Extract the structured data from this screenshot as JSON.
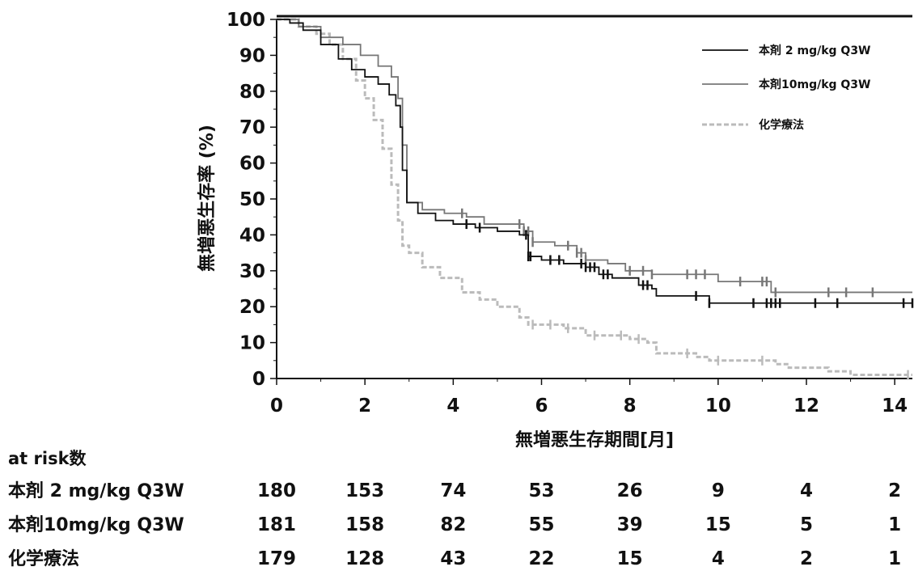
{
  "chart_data": {
    "type": "line",
    "ylabel": "無増悪生存率 (%)",
    "xlabel": "無増悪生存期間[月]",
    "xlim": [
      0,
      14.4
    ],
    "ylim": [
      0,
      100
    ],
    "xticks": [
      0,
      2,
      4,
      6,
      8,
      10,
      12,
      14
    ],
    "yticks": [
      0,
      10,
      20,
      30,
      40,
      50,
      60,
      70,
      80,
      90,
      100
    ],
    "legend_position": "top-right",
    "series": [
      {
        "name": "本剤 2 mg/kg Q3W",
        "color": "#111111",
        "style": "solid",
        "points": [
          [
            0,
            100
          ],
          [
            0.3,
            99
          ],
          [
            0.6,
            97
          ],
          [
            1.0,
            93
          ],
          [
            1.4,
            89
          ],
          [
            1.7,
            86
          ],
          [
            2.0,
            84
          ],
          [
            2.3,
            82
          ],
          [
            2.55,
            79
          ],
          [
            2.7,
            76
          ],
          [
            2.8,
            70
          ],
          [
            2.85,
            58
          ],
          [
            2.95,
            49
          ],
          [
            3.2,
            46
          ],
          [
            3.6,
            44
          ],
          [
            4.0,
            43
          ],
          [
            4.5,
            42
          ],
          [
            5.0,
            41
          ],
          [
            5.5,
            40
          ],
          [
            5.7,
            34
          ],
          [
            6.0,
            33
          ],
          [
            6.5,
            32
          ],
          [
            7.0,
            31
          ],
          [
            7.3,
            29
          ],
          [
            7.6,
            28
          ],
          [
            8.2,
            26
          ],
          [
            8.5,
            25
          ],
          [
            8.6,
            23
          ],
          [
            9.0,
            23
          ],
          [
            9.8,
            21
          ],
          [
            14.4,
            21
          ]
        ],
        "censors": [
          4.3,
          4.6,
          5.65,
          5.7,
          5.75,
          6.2,
          6.4,
          6.9,
          7.0,
          7.1,
          7.2,
          7.4,
          7.5,
          8.3,
          8.4,
          9.5,
          9.8,
          10.8,
          11.1,
          11.2,
          11.3,
          11.4,
          12.2,
          12.7,
          14.2,
          14.4
        ]
      },
      {
        "name": "本剤10mg/kg Q3W",
        "color": "#777777",
        "style": "solid",
        "points": [
          [
            0,
            100
          ],
          [
            0.5,
            98
          ],
          [
            1.0,
            95
          ],
          [
            1.5,
            93
          ],
          [
            1.9,
            90
          ],
          [
            2.3,
            87
          ],
          [
            2.6,
            84
          ],
          [
            2.75,
            78
          ],
          [
            2.85,
            65
          ],
          [
            2.95,
            49
          ],
          [
            3.3,
            47
          ],
          [
            3.8,
            46
          ],
          [
            4.3,
            45
          ],
          [
            4.7,
            43
          ],
          [
            5.4,
            43
          ],
          [
            5.6,
            41
          ],
          [
            5.8,
            38
          ],
          [
            6.3,
            37
          ],
          [
            6.8,
            35
          ],
          [
            7.0,
            33
          ],
          [
            7.5,
            32
          ],
          [
            7.9,
            30
          ],
          [
            8.5,
            29
          ],
          [
            9.8,
            29
          ],
          [
            10.0,
            27
          ],
          [
            11.0,
            27
          ],
          [
            11.2,
            24
          ],
          [
            14.4,
            24
          ]
        ],
        "censors": [
          4.2,
          5.5,
          5.6,
          5.7,
          5.8,
          6.6,
          6.8,
          6.9,
          7.0,
          8.0,
          8.3,
          8.5,
          9.3,
          9.5,
          9.7,
          10.5,
          11.0,
          11.1,
          11.3,
          12.5,
          12.9,
          13.5
        ]
      },
      {
        "name": "化学療法",
        "color": "#bbbbbb",
        "style": "dashed",
        "points": [
          [
            0,
            100
          ],
          [
            0.5,
            98
          ],
          [
            0.9,
            96
          ],
          [
            1.2,
            93
          ],
          [
            1.5,
            89
          ],
          [
            1.8,
            83
          ],
          [
            2.0,
            78
          ],
          [
            2.2,
            72
          ],
          [
            2.4,
            64
          ],
          [
            2.6,
            54
          ],
          [
            2.75,
            44
          ],
          [
            2.85,
            37
          ],
          [
            3.0,
            35
          ],
          [
            3.3,
            31
          ],
          [
            3.7,
            28
          ],
          [
            4.2,
            24
          ],
          [
            4.6,
            22
          ],
          [
            5.0,
            20
          ],
          [
            5.5,
            17
          ],
          [
            5.7,
            15
          ],
          [
            6.0,
            15
          ],
          [
            6.5,
            14
          ],
          [
            7.0,
            12
          ],
          [
            7.5,
            12
          ],
          [
            8.0,
            11
          ],
          [
            8.4,
            10
          ],
          [
            8.6,
            7
          ],
          [
            9.0,
            7
          ],
          [
            9.5,
            6
          ],
          [
            9.8,
            5
          ],
          [
            10.5,
            5
          ],
          [
            11.0,
            5
          ],
          [
            11.3,
            4
          ],
          [
            11.6,
            3
          ],
          [
            12.5,
            2
          ],
          [
            13.0,
            1
          ],
          [
            14.4,
            1
          ]
        ],
        "censors": [
          5.8,
          6.2,
          6.6,
          7.2,
          7.8,
          8.2,
          9.3,
          10.0,
          11.0,
          14.3
        ]
      }
    ],
    "at_risk": {
      "title": "at risk数",
      "timepoints": [
        0,
        2,
        4,
        6,
        8,
        10,
        12,
        14
      ],
      "rows": [
        {
          "label": "本剤 2 mg/kg Q3W",
          "values": [
            "180",
            "153",
            "74",
            "53",
            "26",
            "9",
            "4",
            "2"
          ]
        },
        {
          "label": "本剤10mg/kg Q3W",
          "values": [
            "181",
            "158",
            "82",
            "55",
            "39",
            "15",
            "5",
            "1"
          ]
        },
        {
          "label": "化学療法",
          "values": [
            "179",
            "128",
            "43",
            "22",
            "15",
            "4",
            "2",
            "1"
          ]
        }
      ]
    }
  }
}
